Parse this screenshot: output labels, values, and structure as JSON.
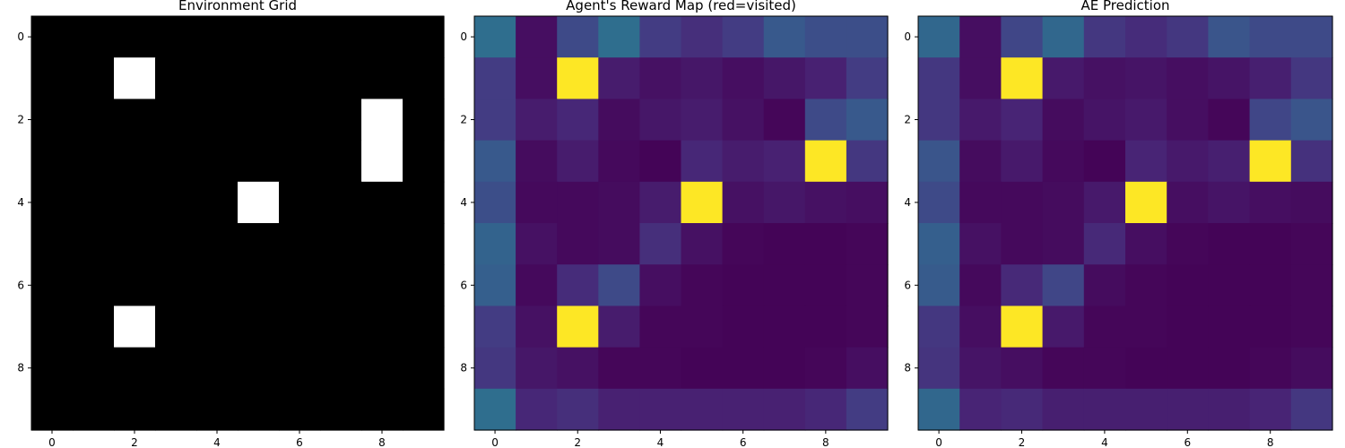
{
  "chart_data": [
    {
      "type": "heatmap",
      "title": "Environment Grid",
      "colormap": "gray",
      "xticks": [
        0,
        2,
        4,
        6,
        8
      ],
      "yticks": [
        0,
        2,
        4,
        6,
        8
      ],
      "rows": 10,
      "cols": 10,
      "values": [
        [
          0,
          0,
          0,
          0,
          0,
          0,
          0,
          0,
          0,
          0
        ],
        [
          0,
          0,
          1,
          0,
          0,
          0,
          0,
          0,
          0,
          0
        ],
        [
          0,
          0,
          0,
          0,
          0,
          0,
          0,
          0,
          1,
          0
        ],
        [
          0,
          0,
          0,
          0,
          0,
          0,
          0,
          0,
          1,
          0
        ],
        [
          0,
          0,
          0,
          0,
          0,
          1,
          0,
          0,
          0,
          0
        ],
        [
          0,
          0,
          0,
          0,
          0,
          0,
          0,
          0,
          0,
          0
        ],
        [
          0,
          0,
          0,
          0,
          0,
          0,
          0,
          0,
          0,
          0
        ],
        [
          0,
          0,
          1,
          0,
          0,
          0,
          0,
          0,
          0,
          0
        ],
        [
          0,
          0,
          0,
          0,
          0,
          0,
          0,
          0,
          0,
          0
        ],
        [
          0,
          0,
          0,
          0,
          0,
          0,
          0,
          0,
          0,
          0
        ]
      ]
    },
    {
      "type": "heatmap",
      "title": "Agent's Reward Map (red=visited)",
      "colormap": "viridis",
      "xticks": [
        0,
        2,
        4,
        6,
        8
      ],
      "yticks": [
        0,
        2,
        4,
        6,
        8
      ],
      "rows": 10,
      "cols": 10,
      "values": [
        [
          0.45,
          0.05,
          0.28,
          0.45,
          0.22,
          0.17,
          0.22,
          0.35,
          0.3,
          0.3
        ],
        [
          0.22,
          0.05,
          1.0,
          0.1,
          0.06,
          0.08,
          0.05,
          0.08,
          0.12,
          0.22
        ],
        [
          0.22,
          0.1,
          0.14,
          0.04,
          0.08,
          0.1,
          0.06,
          0.02,
          0.28,
          0.35
        ],
        [
          0.35,
          0.04,
          0.1,
          0.03,
          0.01,
          0.14,
          0.1,
          0.12,
          1.0,
          0.2
        ],
        [
          0.3,
          0.03,
          0.03,
          0.04,
          0.1,
          1.0,
          0.06,
          0.08,
          0.06,
          0.05
        ],
        [
          0.4,
          0.06,
          0.03,
          0.04,
          0.17,
          0.06,
          0.02,
          0.01,
          0.01,
          0.02
        ],
        [
          0.38,
          0.03,
          0.16,
          0.28,
          0.05,
          0.02,
          0.01,
          0.01,
          0.01,
          0.02
        ],
        [
          0.22,
          0.06,
          1.0,
          0.1,
          0.02,
          0.02,
          0.01,
          0.01,
          0.01,
          0.02
        ],
        [
          0.2,
          0.08,
          0.06,
          0.02,
          0.02,
          0.01,
          0.01,
          0.01,
          0.02,
          0.05
        ],
        [
          0.45,
          0.14,
          0.17,
          0.12,
          0.12,
          0.12,
          0.12,
          0.12,
          0.14,
          0.22
        ]
      ]
    },
    {
      "type": "heatmap",
      "title": "AE Prediction",
      "colormap": "viridis",
      "xticks": [
        0,
        2,
        4,
        6,
        8
      ],
      "yticks": [
        0,
        2,
        4,
        6,
        8
      ],
      "rows": 10,
      "cols": 10,
      "values": [
        [
          0.42,
          0.05,
          0.26,
          0.42,
          0.2,
          0.16,
          0.2,
          0.33,
          0.28,
          0.28
        ],
        [
          0.2,
          0.05,
          1.0,
          0.09,
          0.06,
          0.07,
          0.05,
          0.07,
          0.11,
          0.2
        ],
        [
          0.2,
          0.09,
          0.13,
          0.04,
          0.07,
          0.09,
          0.05,
          0.02,
          0.26,
          0.33
        ],
        [
          0.33,
          0.04,
          0.09,
          0.03,
          0.01,
          0.13,
          0.09,
          0.11,
          1.0,
          0.18
        ],
        [
          0.28,
          0.03,
          0.03,
          0.04,
          0.09,
          1.0,
          0.05,
          0.07,
          0.05,
          0.04
        ],
        [
          0.38,
          0.06,
          0.03,
          0.04,
          0.15,
          0.05,
          0.02,
          0.01,
          0.01,
          0.02
        ],
        [
          0.36,
          0.03,
          0.15,
          0.26,
          0.04,
          0.02,
          0.01,
          0.01,
          0.01,
          0.02
        ],
        [
          0.2,
          0.05,
          1.0,
          0.09,
          0.02,
          0.02,
          0.01,
          0.01,
          0.01,
          0.02
        ],
        [
          0.19,
          0.07,
          0.05,
          0.02,
          0.02,
          0.01,
          0.01,
          0.01,
          0.02,
          0.04
        ],
        [
          0.42,
          0.13,
          0.15,
          0.11,
          0.11,
          0.11,
          0.11,
          0.11,
          0.13,
          0.2
        ]
      ]
    }
  ]
}
